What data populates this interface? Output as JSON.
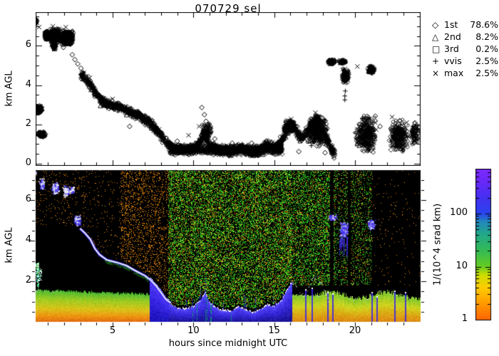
{
  "title": "070729 sel",
  "axes": {
    "x": {
      "label": "hours since midnight UTC",
      "ticks": [
        5,
        10,
        15,
        20
      ],
      "minor_step": 1,
      "min": 0.23,
      "max": 24
    },
    "y_top": {
      "label": "km AGL",
      "ticks": [
        0,
        2,
        4,
        6
      ],
      "minor_step": 0.5,
      "min": 0,
      "max": 7.8
    },
    "y_bottom": {
      "label": "km AGL",
      "ticks": [
        2,
        4,
        6
      ],
      "minor_step": 0.5,
      "min": 0,
      "max": 7.5
    }
  },
  "legend": {
    "entries": [
      {
        "symbol": "◇",
        "name": "1st",
        "pct": "78.6%"
      },
      {
        "symbol": "△",
        "name": "2nd",
        "pct": "8.2%"
      },
      {
        "symbol": "□",
        "name": "3rd",
        "pct": "0.2%"
      },
      {
        "symbol": "+",
        "name": "vvis",
        "pct": "2.5%"
      },
      {
        "symbol": "×",
        "name": "max",
        "pct": "2.5%"
      }
    ]
  },
  "colorbar": {
    "label": "1/(10^4 srad km)",
    "ticks": [
      "1",
      "10",
      "100"
    ],
    "tick_values": [
      1,
      10,
      100
    ],
    "max_value": 680,
    "stops": [
      [
        1,
        "#ff6600"
      ],
      [
        2,
        "#ff9900"
      ],
      [
        4,
        "#ffcc00"
      ],
      [
        7,
        "#ccdd00"
      ],
      [
        10,
        "#66cc22"
      ],
      [
        20,
        "#33bb55"
      ],
      [
        40,
        "#22aa88"
      ],
      [
        70,
        "#2288bb"
      ],
      [
        100,
        "#2944ee"
      ],
      [
        200,
        "#4430f0"
      ],
      [
        400,
        "#6a28f8"
      ],
      [
        680,
        "#7d2bff"
      ]
    ]
  },
  "chart_data": [
    {
      "type": "scatter",
      "title": "070729 sel",
      "ylabel": "km AGL",
      "ylim": [
        0,
        7.8
      ],
      "xlim": [
        0.23,
        24
      ],
      "legend_position": "right",
      "series_note": "cloud base heights, km AGL vs hours UTC; markers: 1st diamond, 2nd triangle, 3rd square, vvis plus, max cross",
      "band": [
        [
          2.98,
          4.6
        ],
        [
          3.3,
          4.35
        ],
        [
          3.62,
          4.05
        ],
        [
          3.9,
          3.62
        ],
        [
          4.2,
          3.3
        ],
        [
          4.65,
          3.05
        ],
        [
          5.25,
          2.92
        ],
        [
          5.85,
          2.76
        ],
        [
          6.4,
          2.52
        ],
        [
          7.0,
          2.27
        ],
        [
          7.35,
          2.05
        ],
        [
          7.65,
          1.8
        ],
        [
          7.95,
          1.5
        ],
        [
          8.3,
          1.1
        ],
        [
          8.6,
          0.92
        ],
        [
          9.0,
          0.75
        ],
        [
          9.5,
          0.7
        ],
        [
          10.0,
          0.82
        ],
        [
          10.45,
          1.15
        ],
        [
          10.7,
          1.55
        ],
        [
          10.95,
          1.05
        ],
        [
          11.3,
          0.8
        ],
        [
          11.7,
          0.65
        ],
        [
          12.3,
          0.6
        ],
        [
          12.8,
          0.82
        ],
        [
          13.2,
          0.68
        ],
        [
          13.65,
          0.55
        ],
        [
          14.1,
          0.68
        ],
        [
          14.55,
          0.92
        ],
        [
          15.0,
          0.82
        ],
        [
          15.45,
          1.15
        ],
        [
          15.85,
          1.75
        ],
        [
          16.1,
          2.05
        ],
        [
          16.45,
          1.55
        ],
        [
          16.75,
          1.3
        ],
        [
          17.05,
          1.62
        ],
        [
          17.35,
          2.1
        ],
        [
          17.6,
          2.3
        ],
        [
          17.9,
          1.9
        ],
        [
          18.2,
          1.3
        ],
        [
          18.5,
          0.8
        ],
        [
          18.72,
          0.55
        ]
      ],
      "band_n": 2400,
      "band_halfwidth": 0.16,
      "dense_extra": [
        [
          8.5,
          15.5,
          0.42,
          1.0,
          950
        ]
      ],
      "clusters": [
        [
          0.05,
          0.68,
          2.58,
          2.98,
          260
        ],
        [
          0.33,
          0.88,
          1.33,
          1.66,
          130
        ],
        [
          0.08,
          0.34,
          7.12,
          7.38,
          70
        ],
        [
          0.78,
          1.06,
          6.28,
          6.78,
          160
        ],
        [
          1.08,
          1.78,
          6.08,
          6.92,
          380
        ],
        [
          1.74,
          2.62,
          6.02,
          6.82,
          420
        ],
        [
          1.22,
          1.52,
          5.82,
          6.12,
          70
        ],
        [
          10.45,
          11.15,
          1.15,
          2.1,
          100
        ],
        [
          15.55,
          16.35,
          1.5,
          2.25,
          160
        ],
        [
          17.0,
          18.35,
          0.85,
          2.55,
          380
        ],
        [
          18.28,
          18.8,
          5.05,
          5.33,
          110
        ],
        [
          18.95,
          19.5,
          5.08,
          5.3,
          70
        ],
        [
          19.15,
          19.7,
          4.05,
          4.88,
          130
        ],
        [
          20.75,
          21.25,
          4.58,
          5.02,
          90
        ],
        [
          19.95,
          21.35,
          0.5,
          2.5,
          340
        ],
        [
          22.05,
          23.35,
          0.5,
          2.3,
          280
        ],
        [
          23.4,
          23.95,
          0.9,
          2.2,
          80
        ]
      ],
      "sparse_diamonds": [
        [
          1.95,
          5.92
        ],
        [
          2.5,
          5.55
        ],
        [
          2.66,
          5.3
        ],
        [
          2.84,
          5.08
        ],
        [
          3.04,
          4.86
        ],
        [
          3.9,
          3.72
        ],
        [
          4.08,
          3.56
        ],
        [
          4.22,
          3.44
        ],
        [
          6.05,
          1.9
        ],
        [
          7.72,
          1.52
        ],
        [
          9.0,
          1.15
        ],
        [
          10.52,
          2.86
        ],
        [
          10.68,
          2.5
        ],
        [
          10.78,
          2.16
        ],
        [
          11.32,
          1.27
        ],
        [
          12.4,
          1.05
        ],
        [
          13.6,
          1.05
        ],
        [
          16.52,
          0.62
        ],
        [
          18.15,
          0.56
        ],
        [
          21.55,
          1.9
        ],
        [
          23.55,
          1.62
        ],
        [
          23.85,
          1.35
        ]
      ],
      "sparse_x": [
        [
          0.45,
          6.95
        ],
        [
          1.3,
          7.0
        ],
        [
          2.1,
          6.95
        ],
        [
          5.0,
          3.3
        ],
        [
          6.5,
          2.6
        ],
        [
          9.7,
          1.45
        ],
        [
          10.35,
          1.9
        ],
        [
          14.9,
          1.1
        ],
        [
          16.05,
          2.28
        ],
        [
          17.55,
          2.6
        ],
        [
          18.9,
          5.25
        ],
        [
          20.15,
          4.95
        ],
        [
          22.3,
          2.38
        ],
        [
          23.2,
          2.1
        ]
      ],
      "sparse_plus": [
        [
          8.35,
          0.88
        ],
        [
          12.0,
          0.9
        ],
        [
          17.3,
          0.92
        ],
        [
          19.37,
          3.45
        ],
        [
          19.37,
          3.25
        ],
        [
          19.4,
          3.7
        ]
      ]
    },
    {
      "type": "heatmap",
      "ylabel": "km AGL",
      "xlabel": "hours since midnight UTC",
      "ylim": [
        0,
        7.5
      ],
      "xlim": [
        0.23,
        24
      ],
      "colorbar_label": "1/(10^4 srad km)",
      "rain": [
        7.25,
        8.45
      ],
      "day_band": [
        8.45,
        16.1
      ],
      "evening1": [
        16.1,
        17.6
      ],
      "noise_regions": [
        [
          0.23,
          5.5,
          "o",
          380
        ],
        [
          5.5,
          8.45,
          "o",
          1600
        ],
        [
          8.45,
          16.1,
          "g",
          12000
        ],
        [
          8.45,
          16.1,
          "o",
          2800
        ],
        [
          8.45,
          16.1,
          "y",
          1600
        ],
        [
          16.1,
          18.8,
          "g",
          3600
        ],
        [
          16.1,
          18.8,
          "o",
          800
        ],
        [
          18.8,
          21.05,
          "g",
          1300
        ],
        [
          18.8,
          21.05,
          "o",
          450
        ],
        [
          21.05,
          24,
          "o",
          140
        ]
      ],
      "upper_clouds_white": [
        [
          0.1,
          0.22,
          7.28,
          7.44
        ],
        [
          0.42,
          0.78,
          6.55,
          7.08
        ],
        [
          1.15,
          1.68,
          6.3,
          6.95
        ],
        [
          1.88,
          2.35,
          6.15,
          6.8
        ],
        [
          2.36,
          2.6,
          6.35,
          6.68
        ],
        [
          2.56,
          3.02,
          4.72,
          5.28
        ]
      ],
      "upper_clouds_blue": [
        [
          18.3,
          18.88,
          5.0,
          5.32
        ],
        [
          19.0,
          19.58,
          4.1,
          5.0
        ],
        [
          20.75,
          21.25,
          4.55,
          5.05
        ]
      ],
      "fall_streaks": [
        19.0,
        19.58,
        3.1
      ],
      "low_left_marks": [
        [
          0.25,
          0.4,
          1.95,
          2.85
        ],
        [
          0.45,
          0.55,
          2.0,
          2.6
        ],
        [
          0.33,
          0.4,
          1.45,
          2.9
        ]
      ],
      "blue_streaks": [
        16.95,
        17.35,
        18.32,
        18.62,
        21.05,
        21.35,
        22.45,
        23.1
      ],
      "dark_stripes": [
        [
          18.48,
          18.66
        ],
        [
          19.6,
          19.72
        ]
      ],
      "morning_layer": {
        "stops": [
          [
            0,
            "#e06a10"
          ],
          [
            0.22,
            "#ee9911"
          ],
          [
            0.45,
            "#d8c418"
          ],
          [
            0.75,
            "#9ccc22"
          ],
          [
            1,
            "#55bb33"
          ]
        ]
      },
      "evening_layer": {
        "stops": [
          [
            0,
            "#dd8812"
          ],
          [
            0.3,
            "#ddaa15"
          ],
          [
            0.6,
            "#cfd41e"
          ],
          [
            1,
            "#7ec92e"
          ]
        ]
      },
      "band_layer": {
        "stops": [
          [
            0,
            "#17128f"
          ],
          [
            0.5,
            "#3526d6"
          ],
          [
            0.85,
            "#4a3bee"
          ],
          [
            1,
            "#5a4bff"
          ]
        ]
      },
      "rain_layer": {
        "stops": [
          [
            0,
            "#1a10b8"
          ],
          [
            0.6,
            "#3a28e8"
          ],
          [
            1,
            "#5538f8"
          ]
        ]
      }
    }
  ]
}
